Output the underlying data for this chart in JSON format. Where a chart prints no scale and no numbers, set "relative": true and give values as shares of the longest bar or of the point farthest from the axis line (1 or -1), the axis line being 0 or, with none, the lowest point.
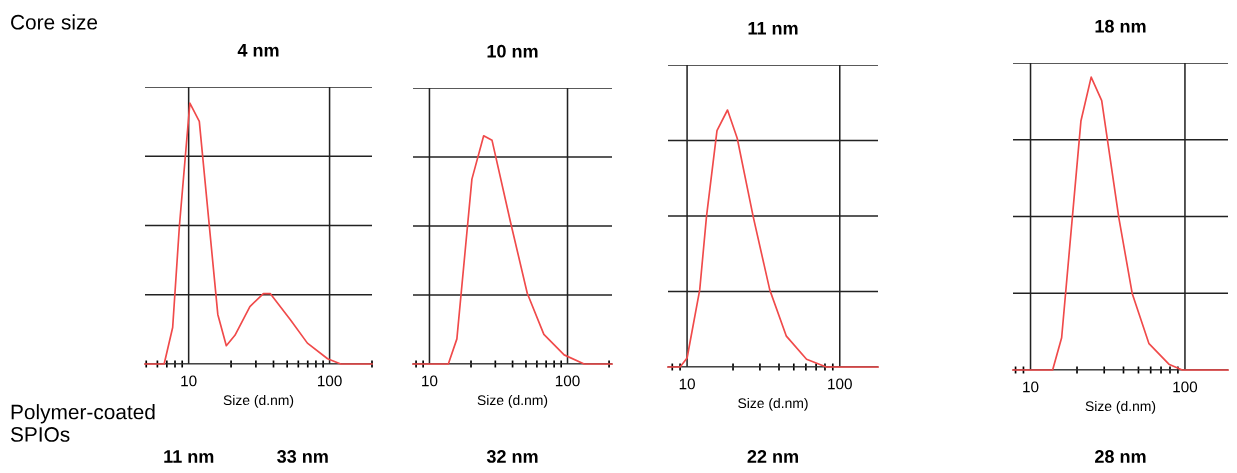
{
  "chart_data": [
    {
      "type": "line",
      "title": "4 nm",
      "xlabel": "Size (d.nm)",
      "log": "x",
      "relative": true,
      "grid": true,
      "tick_labels": "x",
      "marker": "none",
      "line_style": "solid",
      "xlim": [
        4.9,
        200
      ],
      "xticks": [
        10,
        100
      ],
      "annotations": [
        "Core size",
        "Polymer-coated SPIOs",
        "11 nm",
        "33 nm"
      ],
      "series": [
        {
          "color": "#f04a4a",
          "x": [
            4.9,
            6.7,
            7.7,
            8.6,
            10.2,
            11.9,
            16.1,
            18.5,
            21.3,
            27.2,
            33.9,
            37.9,
            52.7,
            69.6,
            96.8,
            120,
            200
          ],
          "values": [
            0,
            0,
            0.14,
            0.53,
            1,
            0.93,
            0.19,
            0.07,
            0.11,
            0.22,
            0.27,
            0.27,
            0.17,
            0.08,
            0.02,
            0,
            0
          ]
        }
      ]
    },
    {
      "type": "line",
      "title": "10 nm",
      "xlabel": "Size (d.nm)",
      "log": "x",
      "relative": true,
      "grid": true,
      "tick_labels": "x",
      "marker": "none",
      "line_style": "solid",
      "xlim": [
        7.6,
        210
      ],
      "xticks": [
        10,
        100
      ],
      "annotations": [
        "32 nm"
      ],
      "series": [
        {
          "color": "#f04a4a",
          "x": [
            7.6,
            13.7,
            15.8,
            20.3,
            24.7,
            28.4,
            38.7,
            51.1,
            67.4,
            94.5,
            132,
            210
          ],
          "values": [
            0,
            0,
            0.11,
            0.81,
            1,
            0.98,
            0.62,
            0.31,
            0.13,
            0.04,
            0,
            0
          ]
        }
      ]
    },
    {
      "type": "line",
      "title": "11 nm",
      "xlabel": "Size (d.nm)",
      "log": "x",
      "relative": true,
      "grid": true,
      "tick_labels": "x",
      "marker": "none",
      "line_style": "solid",
      "xlim": [
        7.5,
        178
      ],
      "xticks": [
        10,
        100
      ],
      "annotations": [
        "22 nm"
      ],
      "series": [
        {
          "color": "#f04a4a",
          "x": [
            7.5,
            9.0,
            10,
            12.1,
            13.4,
            15.7,
            18.4,
            21.3,
            27.1,
            34.8,
            44.7,
            60.6,
            81.6,
            178
          ],
          "values": [
            0,
            0,
            0.035,
            0.3,
            0.585,
            0.92,
            1,
            0.89,
            0.585,
            0.3,
            0.12,
            0.03,
            0,
            0
          ]
        }
      ]
    },
    {
      "type": "line",
      "title": "18 nm",
      "xlabel": "Size (d.nm)",
      "log": "x",
      "relative": true,
      "grid": true,
      "tick_labels": "x",
      "marker": "none",
      "line_style": "solid",
      "xlim": [
        7.7,
        190
      ],
      "xticks": [
        10,
        100
      ],
      "annotations": [
        "28 nm"
      ],
      "series": [
        {
          "color": "#f04a4a",
          "x": [
            7.7,
            13.9,
            15.9,
            21.2,
            24.7,
            28.9,
            37.3,
            45.6,
            58.5,
            78.7,
            96,
            190
          ],
          "values": [
            0,
            0,
            0.11,
            0.85,
            1,
            0.92,
            0.52,
            0.26,
            0.09,
            0.02,
            0,
            0
          ]
        }
      ]
    }
  ]
}
